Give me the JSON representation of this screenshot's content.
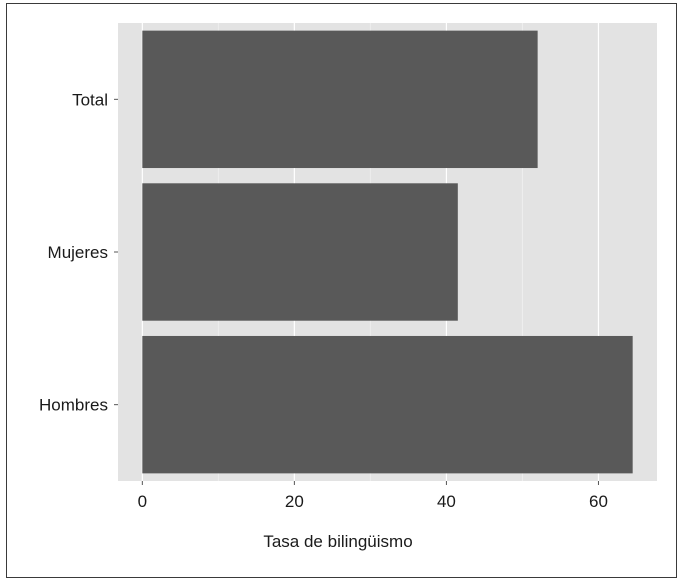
{
  "chart_data": {
    "type": "bar",
    "orientation": "horizontal",
    "categories": [
      "Total",
      "Mujeres",
      "Hombres"
    ],
    "values": [
      52,
      41.5,
      64.5
    ],
    "title": "",
    "xlabel": "Tasa de bilingüismo",
    "ylabel": "",
    "xlim": [
      -3.2,
      67.7
    ],
    "xticks": [
      0,
      20,
      40,
      60
    ],
    "grid": true,
    "legend": "none",
    "colors": {
      "bar": "#595959",
      "panel": "#e3e3e3",
      "grid_major": "#ffffff",
      "grid_minor": "#eeeeee",
      "text": "#1a1a1a"
    }
  }
}
